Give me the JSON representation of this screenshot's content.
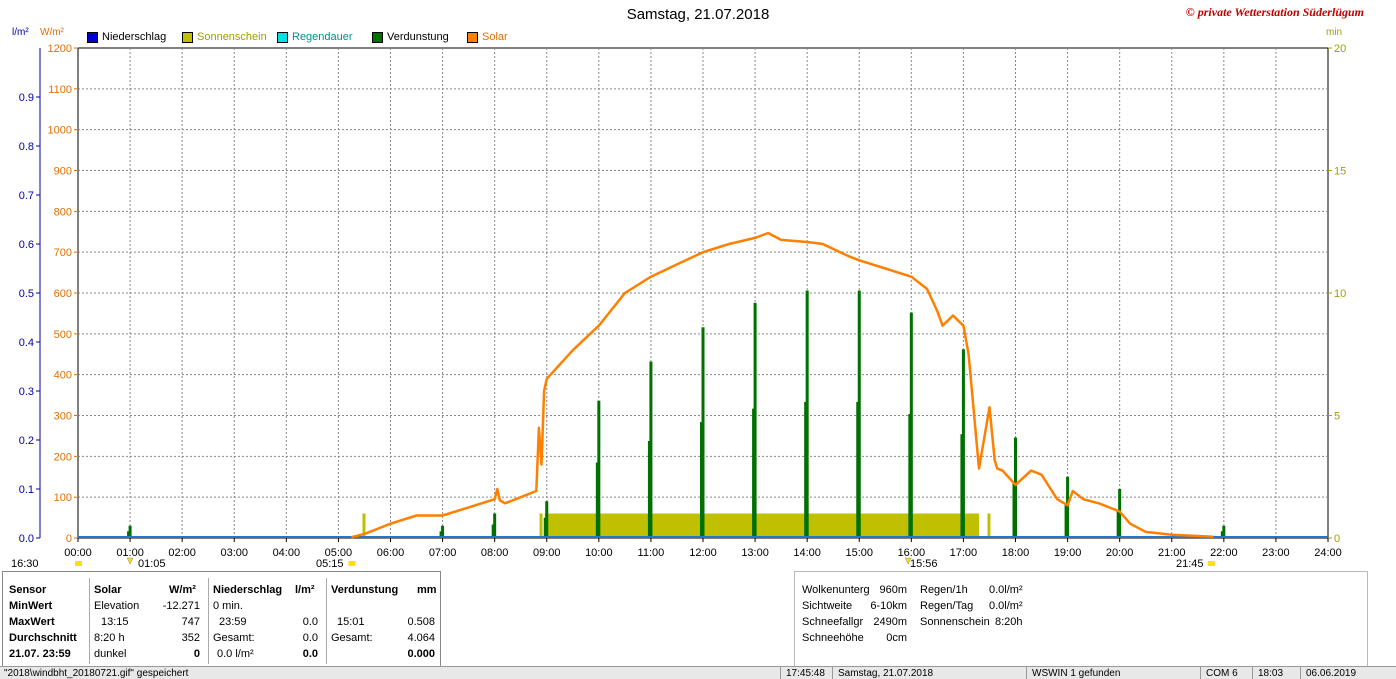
{
  "title": "Samstag, 21.07.2018",
  "watermark": "© private Wetterstation Süderlügum",
  "left_axis_units": {
    "primary": "l/m²",
    "secondary": "W/m²"
  },
  "right_axis_unit": "min",
  "legend": [
    {
      "label": "Niederschlag",
      "color": "#0000cc"
    },
    {
      "label": "Sonnenschein",
      "color": "#c0c000"
    },
    {
      "label": "Regendauer",
      "color": "#00e0e0"
    },
    {
      "label": "Verdunstung",
      "color": "#007000"
    },
    {
      "label": "Solar",
      "color": "#ff8000"
    }
  ],
  "sun_markers": {
    "left": "16:30",
    "rise": "05:15",
    "sunset": "21:45",
    "low_min": "01:05",
    "low_alt": "15:56"
  },
  "chart_data": {
    "type": "line",
    "x_ticks": [
      "00:00",
      "01:00",
      "02:00",
      "03:00",
      "04:00",
      "05:00",
      "06:00",
      "07:00",
      "08:00",
      "09:00",
      "10:00",
      "11:00",
      "12:00",
      "13:00",
      "14:00",
      "15:00",
      "16:00",
      "17:00",
      "18:00",
      "19:00",
      "20:00",
      "21:00",
      "22:00",
      "23:00",
      "24:00"
    ],
    "x_range_hours": [
      0,
      24
    ],
    "y_left_lm2": {
      "ticks": [
        "0.0",
        "0.1",
        "0.2",
        "0.3",
        "0.4",
        "0.5",
        "0.6",
        "0.7",
        "0.8",
        "0.9"
      ],
      "range": [
        0,
        1.0
      ]
    },
    "y_left_wm2": {
      "ticks": [
        "0",
        "100",
        "200",
        "300",
        "400",
        "500",
        "600",
        "700",
        "800",
        "900",
        "1000",
        "1100",
        "1200"
      ],
      "range": [
        0,
        1200
      ]
    },
    "y_right_min": {
      "ticks": [
        "0",
        "5",
        "10",
        "15",
        "20"
      ],
      "range": [
        0,
        20
      ]
    },
    "series": [
      {
        "name": "Solar",
        "color": "#ff8000",
        "unit": "W/m²",
        "x": [
          5.25,
          5.5,
          6.0,
          6.5,
          7.0,
          7.5,
          8.0,
          8.05,
          8.1,
          8.2,
          8.5,
          8.8,
          8.85,
          8.9,
          8.95,
          9.0,
          9.5,
          10.0,
          10.5,
          11.0,
          11.5,
          12.0,
          12.5,
          13.0,
          13.25,
          13.5,
          14.0,
          14.3,
          14.8,
          15.0,
          15.5,
          16.0,
          16.3,
          16.5,
          16.6,
          16.8,
          17.0,
          17.1,
          17.3,
          17.5,
          17.6,
          17.65,
          17.75,
          18.0,
          18.3,
          18.5,
          18.8,
          19.0,
          19.1,
          19.3,
          19.6,
          20.0,
          20.2,
          20.5,
          21.0,
          21.5,
          21.8
        ],
        "y": [
          2,
          10,
          35,
          55,
          55,
          75,
          95,
          120,
          92,
          85,
          100,
          115,
          270,
          180,
          360,
          390,
          460,
          520,
          600,
          640,
          670,
          700,
          720,
          735,
          747,
          730,
          725,
          720,
          690,
          680,
          660,
          640,
          610,
          555,
          520,
          545,
          520,
          450,
          170,
          320,
          190,
          170,
          165,
          130,
          165,
          155,
          95,
          80,
          115,
          95,
          85,
          65,
          35,
          15,
          8,
          5,
          3
        ]
      },
      {
        "name": "Sonnenschein",
        "color": "#c0c000",
        "unit": "min",
        "x": [
          5.5,
          8.9,
          9.0,
          17.0,
          17.5
        ],
        "y": [
          1.0,
          1.0,
          1.0,
          1.0,
          1.0
        ],
        "block": {
          "start": 9.0,
          "end": 17.3,
          "value": 1.0
        }
      },
      {
        "name": "Verdunstung",
        "color": "#007000",
        "unit": "mm",
        "x": [
          1.0,
          7.0,
          8.0,
          9.0,
          10.0,
          11.0,
          12.0,
          13.0,
          14.0,
          15.0,
          16.0,
          17.0,
          18.0,
          19.0,
          20.0,
          22.0
        ],
        "y": [
          0.025,
          0.025,
          0.05,
          0.075,
          0.28,
          0.36,
          0.43,
          0.48,
          0.505,
          0.505,
          0.46,
          0.385,
          0.205,
          0.125,
          0.1,
          0.025
        ]
      }
    ]
  },
  "summary": {
    "headers": {
      "sensor": "Sensor",
      "solar": "Solar",
      "solar_unit": "W/m²",
      "niederschlag": "Niederschlag",
      "niederschlag_unit": "l/m²",
      "verdunstung": "Verdunstung",
      "verdunstung_unit": "mm"
    },
    "rows": [
      {
        "label": "MinWert",
        "solar_a": "Elevation",
        "solar_b": "-12.271",
        "nied_a": "0 min.",
        "nied_b": "",
        "verd_a": "",
        "verd_b": ""
      },
      {
        "label": "MaxWert",
        "solar_a": "13:15",
        "solar_b": "747",
        "nied_a": "23:59",
        "nied_b": "0.0",
        "verd_a": "15:01",
        "verd_b": "0.508"
      },
      {
        "label": "Durchschnitt",
        "solar_a": "8:20 h",
        "solar_b": "352",
        "nied_a": "Gesamt:",
        "nied_b": "0.0",
        "verd_a": "Gesamt:",
        "verd_b": "4.064"
      },
      {
        "label": "21.07. 23:59",
        "solar_a": "dunkel",
        "solar_b": "0",
        "nied_a": "0.0 l/m²",
        "nied_b": "0.0",
        "verd_a": "",
        "verd_b": "0.000"
      }
    ],
    "weather": [
      {
        "k": "Wolkenunterg",
        "v": "960m"
      },
      {
        "k": "Sichtweite",
        "v": "6-10km"
      },
      {
        "k": "Schneefallgr",
        "v": "2490m"
      },
      {
        "k": "Schneehöhe",
        "v": "0cm"
      }
    ],
    "rain": [
      {
        "k": "Regen/1h",
        "v": "0.0l/m²"
      },
      {
        "k": "Regen/Tag",
        "v": "0.0l/m²"
      },
      {
        "k": "Sonnenschein",
        "v": "8:20h"
      }
    ]
  },
  "statusbar": {
    "file": "\"2018\\windbht_20180721.gif\" gespeichert",
    "time": "17:45:48",
    "date": "Samstag, 21.07.2018",
    "device": "WSWIN 1 gefunden",
    "port": "COM 6",
    "clock": "18:03",
    "today": "06.06.2019"
  }
}
